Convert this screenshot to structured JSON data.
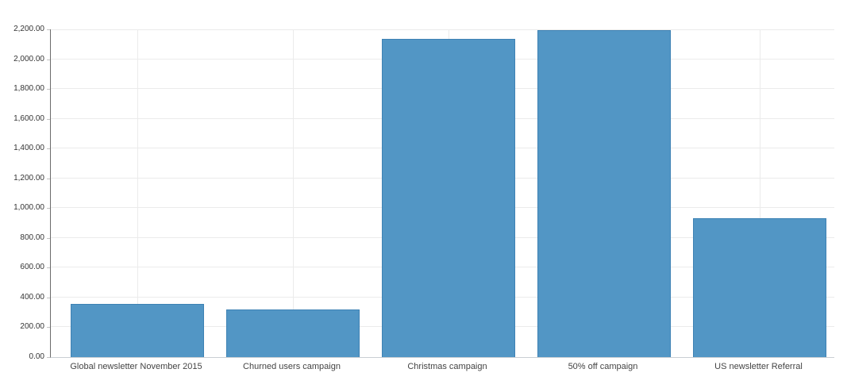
{
  "chart_data": {
    "type": "bar",
    "title": "",
    "xlabel": "",
    "ylabel": "",
    "categories": [
      "Global newsletter November 2015",
      "Churned users campaign",
      "Christmas campaign",
      "50% off campaign",
      "US newsletter Referral"
    ],
    "values": [
      355,
      318,
      2136,
      2195,
      932
    ],
    "ylim": [
      0,
      2200
    ],
    "ytick_step": 200,
    "ytick_labels": [
      "0.00",
      "200.00",
      "400.00",
      "600.00",
      "800.00",
      "1,000.00",
      "1,200.00",
      "1,400.00",
      "1,600.00",
      "1,800.00",
      "2,000.00",
      "2,200.00"
    ],
    "grid": "on",
    "legend": "none"
  },
  "colors": {
    "bar_fill": "#5296c5",
    "bar_border": "#3e82b4",
    "gridline": "#ebebeb",
    "y_axis_line": "#6b6b6b",
    "x_axis_line": "#c9ced3",
    "tick_label": "#333333",
    "category_label": "#444444",
    "background": "#ffffff"
  }
}
